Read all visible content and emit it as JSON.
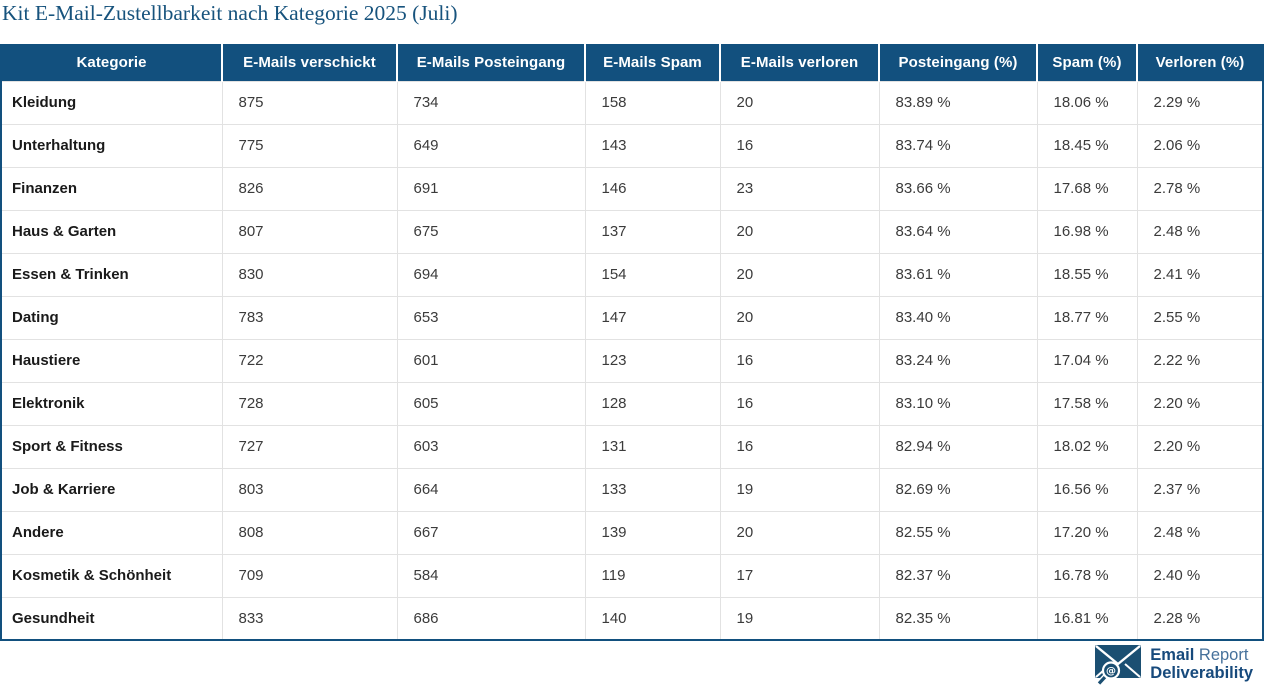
{
  "page_title": "Kit E-Mail-Zustellbarkeit nach Kategorie 2025 (Juli)",
  "chart_data": {
    "type": "table",
    "title": "Kit E-Mail-Zustellbarkeit nach Kategorie 2025 (Juli)",
    "columns": [
      "Kategorie",
      "E-Mails verschickt",
      "E-Mails Posteingang",
      "E-Mails Spam",
      "E-Mails verloren",
      "Posteingang (%)",
      "Spam (%)",
      "Verloren (%)"
    ],
    "rows": [
      [
        "Kleidung",
        "875",
        "734",
        "158",
        "20",
        "83.89 %",
        "18.06 %",
        "2.29 %"
      ],
      [
        "Unterhaltung",
        "775",
        "649",
        "143",
        "16",
        "83.74 %",
        "18.45 %",
        "2.06 %"
      ],
      [
        "Finanzen",
        "826",
        "691",
        "146",
        "23",
        "83.66 %",
        "17.68 %",
        "2.78 %"
      ],
      [
        "Haus & Garten",
        "807",
        "675",
        "137",
        "20",
        "83.64 %",
        "16.98 %",
        "2.48 %"
      ],
      [
        "Essen & Trinken",
        "830",
        "694",
        "154",
        "20",
        "83.61 %",
        "18.55 %",
        "2.41 %"
      ],
      [
        "Dating",
        "783",
        "653",
        "147",
        "20",
        "83.40 %",
        "18.77 %",
        "2.55 %"
      ],
      [
        "Haustiere",
        "722",
        "601",
        "123",
        "16",
        "83.24 %",
        "17.04 %",
        "2.22 %"
      ],
      [
        "Elektronik",
        "728",
        "605",
        "128",
        "16",
        "83.10 %",
        "17.58 %",
        "2.20 %"
      ],
      [
        "Sport & Fitness",
        "727",
        "603",
        "131",
        "16",
        "82.94 %",
        "18.02 %",
        "2.20 %"
      ],
      [
        "Job & Karriere",
        "803",
        "664",
        "133",
        "19",
        "82.69 %",
        "16.56 %",
        "2.37 %"
      ],
      [
        "Andere",
        "808",
        "667",
        "139",
        "20",
        "82.55 %",
        "17.20 %",
        "2.48 %"
      ],
      [
        "Kosmetik & Schönheit",
        "709",
        "584",
        "119",
        "17",
        "82.37 %",
        "16.78 %",
        "2.40 %"
      ],
      [
        "Gesundheit",
        "833",
        "686",
        "140",
        "19",
        "82.35 %",
        "16.81 %",
        "2.28 %"
      ]
    ],
    "grid": true,
    "header_position": "top"
  },
  "logo": {
    "line1_bold": "Email",
    "line1_light": "Report",
    "line2_bold": "Deliverability",
    "icon": "envelope-search-icon"
  },
  "colors": {
    "header_bg": "#12507e",
    "title_text": "#17537d",
    "table_outer_border": "#12507e",
    "grid_line": "#e2e2e2",
    "body_text": "#3b3b3b",
    "logo_dark_blue": "#174a7c",
    "logo_light_blue": "#46719b"
  }
}
